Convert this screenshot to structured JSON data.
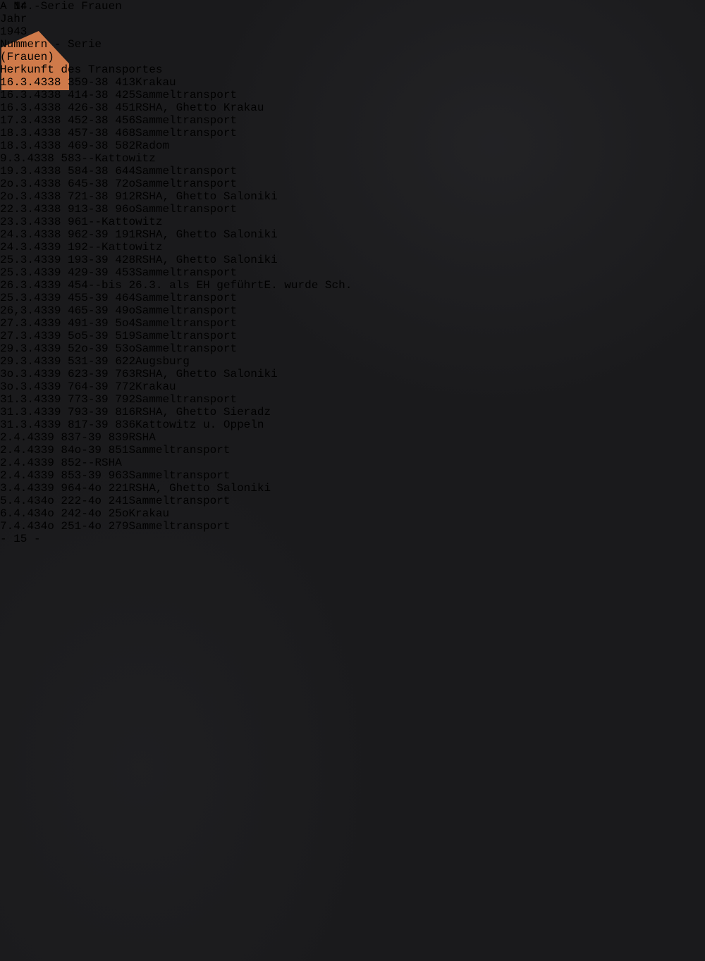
{
  "document": {
    "page_number_top": "- 14 -",
    "page_number_bottom": "- 15 -",
    "headers": {
      "year_label": "Jahr",
      "year_value": "1943",
      "series_label": "Nummern - Serie",
      "series_sub": "(Frauen)",
      "origin_label": "Herkunft des Transportes"
    },
    "range_separator": "-",
    "rows": [
      {
        "date": "16.3.43",
        "from": "38 359",
        "to": "38 413",
        "origin": "Krakau"
      },
      {
        "date": "16.3.43",
        "from": "38 414",
        "to": "38 425",
        "origin": "Sammeltransport"
      },
      {
        "date": "16.3.43",
        "from": "38 426",
        "to": "38 451",
        "origin": "RSHA, Ghetto Krakau"
      },
      {
        "date": "17.3.43",
        "from": "38 452",
        "to": "38 456",
        "origin": "Sammeltransport"
      },
      {
        "date": "18.3.43",
        "from": "38 457",
        "to": "38 468",
        "origin": "Sammeltransport"
      },
      {
        "date": "18.3.43",
        "from": "38 469",
        "to": "38 582",
        "origin": "Radom"
      },
      {
        "date": " 9.3.43",
        "from": "38 583",
        "to": "-",
        "origin": "Kattowitz"
      },
      {
        "date": "19.3.43",
        "from": "38 584",
        "to": "38 644",
        "origin": "Sammeltransport"
      },
      {
        "date": "2o.3.43",
        "from": "38 645",
        "to": "38 72o",
        "origin": "Sammeltransport"
      },
      {
        "date": "2o.3.43",
        "from": "38 721",
        "to": "38 912",
        "origin": "RSHA, Ghetto Saloniki"
      },
      {
        "date": "22.3.43",
        "from": "38 913",
        "to": "38 96o",
        "origin": "Sammeltransport"
      },
      {
        "date": "23.3.43",
        "from": "38 961",
        "to": "-",
        "origin": "Kattowitz"
      },
      {
        "date": "24.3.43",
        "from": "38 962",
        "to": "39 191",
        "origin": "RSHA, Ghetto Saloniki"
      },
      {
        "date": "24.3.43",
        "from": "39 192",
        "to": "-",
        "origin": "Kattowitz"
      },
      {
        "date": "25.3.43",
        "from": "39 193",
        "to": "39 428",
        "origin": "RSHA, Ghetto Saloniki"
      },
      {
        "date": "25.3.43",
        "from": "39 429",
        "to": "39 453",
        "origin": "Sammeltransport"
      },
      {
        "date": "26.3.43",
        "from": "39 454",
        "to": "-",
        "origin": "bis 26.3. als EH geführt",
        "origin2": "E. wurde Sch."
      },
      {
        "date": "25.3.43",
        "from": "39 455",
        "to": "39 464",
        "origin": "Sammeltransport"
      },
      {
        "date": "26,3.43",
        "from": "39 465",
        "to": "39 49o",
        "origin": "Sammeltransport"
      },
      {
        "date": "27.3.43",
        "from": "39 491",
        "to": "39 5o4",
        "origin": "Sammeltransport"
      },
      {
        "date": "27.3.43",
        "from": "39 5o5",
        "to": "39 519",
        "origin": "Sammeltransport"
      },
      {
        "date": "29.3.43",
        "from": "39 52o",
        "to": "39 53o",
        "origin": "Sammeltransport"
      },
      {
        "date": "29.3.43",
        "from": "39 531",
        "to": "39 622",
        "origin": "Augsburg"
      },
      {
        "date": "3o.3.43",
        "from": "39 623",
        "to": "39 763",
        "origin": "RSHA, Ghetto Saloniki"
      },
      {
        "date": "3o.3.43",
        "from": "39 764",
        "to": "39 772",
        "origin": "Krakau"
      },
      {
        "date": "31.3.43",
        "from": "39 773",
        "to": "39 792",
        "origin": "Sammeltransport"
      },
      {
        "date": "31.3.43",
        "from": "39 793",
        "to": "39 816",
        "origin": "RSHA, Ghetto Sieradz"
      },
      {
        "date": "31.3.43",
        "from": "39 817",
        "to": "39 836",
        "origin": "Kattowitz u. Oppeln"
      },
      {
        "date": " 2.4.43",
        "from": "39 837",
        "to": "39 839",
        "origin": "RSHA"
      },
      {
        "date": " 2.4.43",
        "from": "39 84o",
        "to": "39 851",
        "origin": "Sammeltransport"
      },
      {
        "date": " 2.4.43",
        "from": "39 852",
        "to": "-",
        "origin": "RSHA"
      },
      {
        "date": " 2.4.43",
        "from": "39 853",
        "to": "39 963",
        "origin": "Sammeltransport"
      },
      {
        "date": " 3.4.43",
        "from": "39 964",
        "to": "4o 221",
        "origin": "RSHA, Ghetto Saloniki"
      },
      {
        "date": " 5.4.43",
        "from": "4o 222",
        "to": "4o 241",
        "origin": "Sammeltransport"
      },
      {
        "date": " 6.4.43",
        "from": "4o 242",
        "to": "4o 25o",
        "origin": "Krakau"
      },
      {
        "date": " 7.4.43",
        "from": "4o 251",
        "to": "4o 279",
        "origin": "Sammeltransport"
      }
    ],
    "side_tab": {
      "label": "A  Nr. Serie Frauen"
    },
    "colors": {
      "background": "#1a1a1c",
      "folder_orange": "#e8925f",
      "paper": "#e7dcc1",
      "ink": "#564a37",
      "hole_through_color": "#a1502a"
    }
  }
}
